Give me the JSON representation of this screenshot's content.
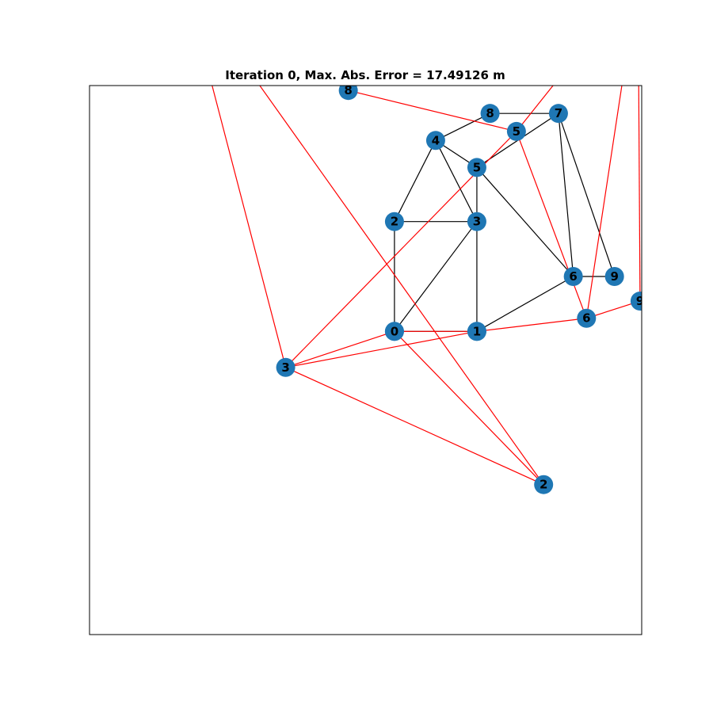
{
  "title": "Iteration 0, Max. Abs. Error = 17.49126 m",
  "colors": {
    "node": "#1f77b4",
    "true_edge": "#000000",
    "estimate_edge": "#ff0000",
    "frame": "#000000",
    "background": "#ffffff"
  },
  "chart_data": {
    "type": "network",
    "title": "Iteration 0, Max. Abs. Error = 17.49126 m",
    "xlabel": "",
    "ylabel": "",
    "xlim": [
      -3.7,
      3.0
    ],
    "ylim": [
      -3.7,
      3.0
    ],
    "grid": false,
    "axis_ticks": false,
    "true_graph": {
      "edge_color": "black",
      "nodes": [
        {
          "id": "0",
          "label": "0",
          "x": 0.0,
          "y": 0.0
        },
        {
          "id": "1",
          "label": "1",
          "x": 1.0,
          "y": 0.0
        },
        {
          "id": "2",
          "label": "2",
          "x": 0.0,
          "y": 1.34
        },
        {
          "id": "3",
          "label": "3",
          "x": 1.0,
          "y": 1.34
        },
        {
          "id": "4",
          "label": "4",
          "x": 0.5,
          "y": 2.33
        },
        {
          "id": "5",
          "label": "5",
          "x": 1.0,
          "y": 2.0
        },
        {
          "id": "6",
          "label": "6",
          "x": 2.17,
          "y": 0.67
        },
        {
          "id": "7",
          "label": "7",
          "x": 1.99,
          "y": 2.66
        },
        {
          "id": "8",
          "label": "8",
          "x": 1.16,
          "y": 2.66
        },
        {
          "id": "9",
          "label": "9",
          "x": 2.67,
          "y": 0.67
        }
      ],
      "edges": [
        [
          "0",
          "1"
        ],
        [
          "0",
          "2"
        ],
        [
          "0",
          "3"
        ],
        [
          "1",
          "3"
        ],
        [
          "1",
          "6"
        ],
        [
          "2",
          "3"
        ],
        [
          "2",
          "4"
        ],
        [
          "3",
          "4"
        ],
        [
          "3",
          "5"
        ],
        [
          "4",
          "5"
        ],
        [
          "4",
          "8"
        ],
        [
          "5",
          "6"
        ],
        [
          "5",
          "7"
        ],
        [
          "6",
          "7"
        ],
        [
          "6",
          "9"
        ],
        [
          "7",
          "8"
        ],
        [
          "7",
          "9"
        ]
      ]
    },
    "estimated_graph": {
      "edge_color": "red",
      "nodes": [
        {
          "id": "0",
          "label": "0",
          "x": 0.0,
          "y": 0.0
        },
        {
          "id": "1",
          "label": "1",
          "x": 1.0,
          "y": 0.0
        },
        {
          "id": "2",
          "label": "2",
          "x": 1.81,
          "y": -1.87
        },
        {
          "id": "3",
          "label": "3",
          "x": -1.32,
          "y": -0.44
        },
        {
          "id": "5",
          "label": "5",
          "x": 1.48,
          "y": 2.44
        },
        {
          "id": "6",
          "label": "6",
          "x": 2.33,
          "y": 0.16
        },
        {
          "id": "8",
          "label": "8",
          "x": -0.56,
          "y": 2.94
        },
        {
          "id": "9",
          "label": "9",
          "x": 2.98,
          "y": 0.37
        },
        {
          "id": "a",
          "label": "",
          "x": -2.42,
          "y": 3.8
        },
        {
          "id": "b",
          "label": "",
          "x": -2.2,
          "y": 3.8
        },
        {
          "id": "c",
          "label": "",
          "x": 2.4,
          "y": 3.6
        },
        {
          "id": "d",
          "label": "",
          "x": 2.88,
          "y": 3.8
        },
        {
          "id": "e",
          "label": "",
          "x": 2.96,
          "y": 3.6
        },
        {
          "id": "f",
          "label": "",
          "x": 0.3,
          "y": 3.6
        }
      ],
      "edges": [
        [
          "0",
          "1"
        ],
        [
          "0",
          "2"
        ],
        [
          "0",
          "3"
        ],
        [
          "1",
          "3"
        ],
        [
          "1",
          "6"
        ],
        [
          "3",
          "2"
        ],
        [
          "3",
          "a"
        ],
        [
          "2",
          "b"
        ],
        [
          "3",
          "5"
        ],
        [
          "5",
          "c"
        ],
        [
          "5",
          "6"
        ],
        [
          "5",
          "8"
        ],
        [
          "8",
          "f"
        ],
        [
          "6",
          "9"
        ],
        [
          "6",
          "d"
        ],
        [
          "9",
          "e"
        ]
      ]
    }
  }
}
